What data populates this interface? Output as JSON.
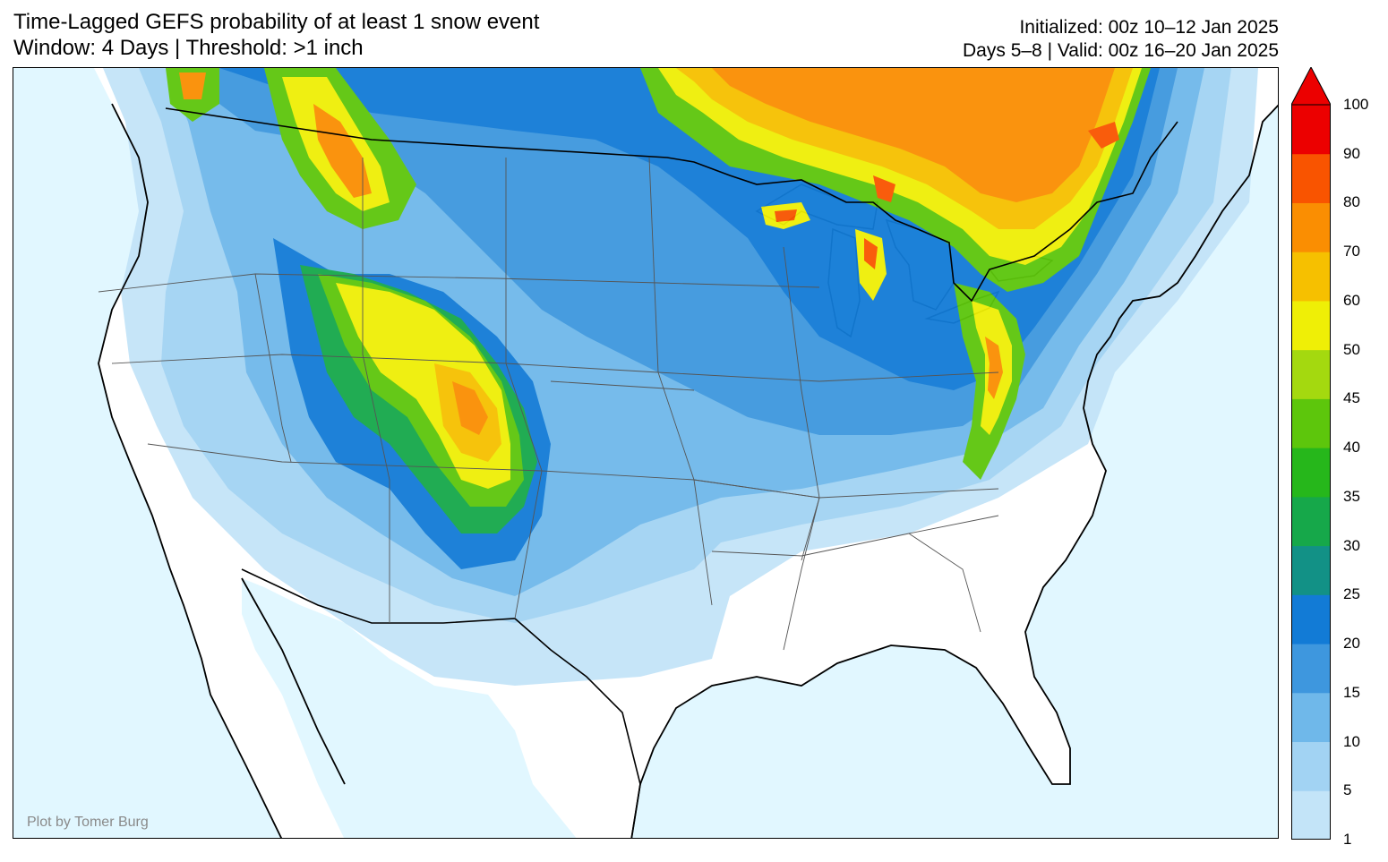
{
  "title": {
    "line1": "Time-Lagged GEFS probability of at least 1 snow event",
    "line2": "Window: 4 Days | Threshold: >1 inch"
  },
  "meta": {
    "initialized": "Initialized: 00z 10–12 Jan 2025",
    "valid": "Days 5–8 | Valid: 00z 16–20 Jan 2025"
  },
  "credit": "Plot by Tomer Burg",
  "colorbar": {
    "labels": [
      "1",
      "5",
      "10",
      "15",
      "20",
      "25",
      "30",
      "35",
      "40",
      "45",
      "50",
      "60",
      "70",
      "80",
      "90",
      "100"
    ],
    "colors": [
      "#c3e4f8",
      "#a2d3f3",
      "#6fb8ea",
      "#3e97de",
      "#127bd6",
      "#129186",
      "#16a84a",
      "#26b71b",
      "#5dc60c",
      "#a4d90f",
      "#efef06",
      "#f6c000",
      "#fa8e02",
      "#f95400",
      "#ec0000"
    ],
    "extend_color": "#ec0000"
  },
  "map": {
    "ocean_color": "#e1f7ff",
    "land_color": "#ffffff",
    "region": "Contiguous United States, southern Canada, northern Mexico"
  }
}
